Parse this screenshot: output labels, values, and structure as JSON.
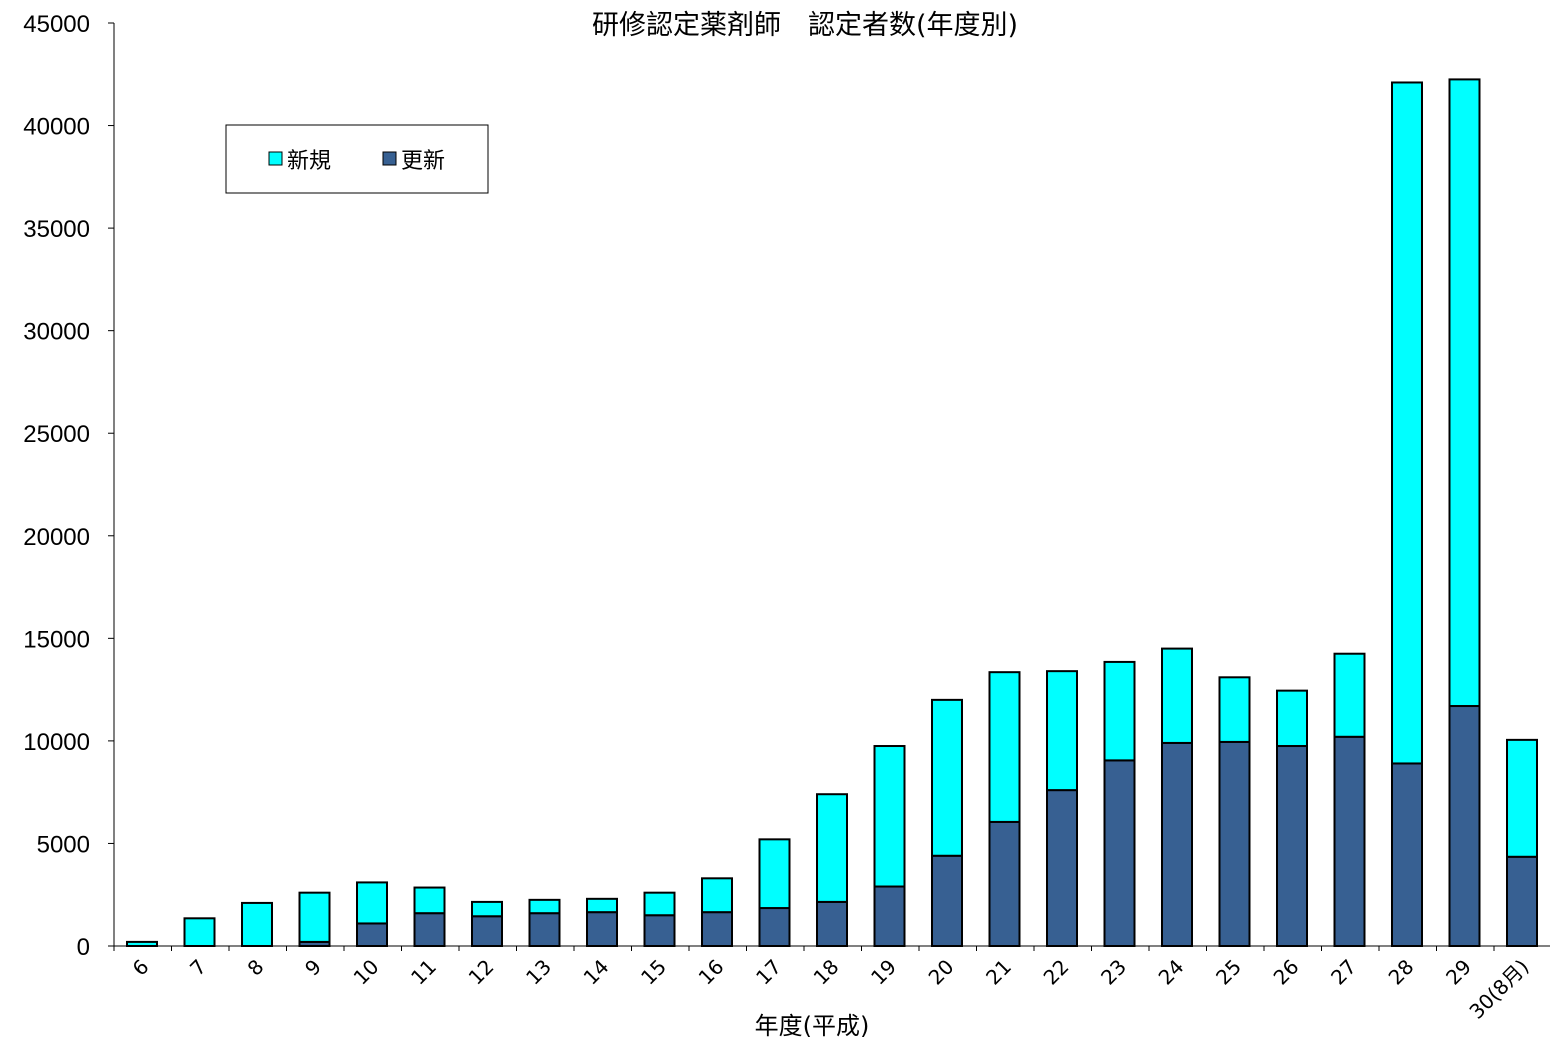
{
  "chart_data": {
    "type": "bar",
    "stacked": true,
    "title": "研修認定薬剤師　認定者数(年度別)",
    "xlabel": "年度(平成)",
    "ylabel": "",
    "ylim": [
      0,
      45000
    ],
    "yticks": [
      0,
      5000,
      10000,
      15000,
      20000,
      25000,
      30000,
      35000,
      40000,
      45000
    ],
    "grid": false,
    "legend_position": "top-left",
    "categories": [
      "6",
      "7",
      "8",
      "9",
      "10",
      "11",
      "12",
      "13",
      "14",
      "15",
      "16",
      "17",
      "18",
      "19",
      "20",
      "21",
      "22",
      "23",
      "24",
      "25",
      "26",
      "27",
      "28",
      "29",
      "30(8月)"
    ],
    "series": [
      {
        "name": "更新",
        "color": "#376092",
        "values": [
          0,
          0,
          0,
          200,
          1100,
          1600,
          1450,
          1600,
          1650,
          1500,
          1650,
          1850,
          2150,
          2900,
          4400,
          6050,
          7600,
          9050,
          9900,
          9950,
          9750,
          10200,
          8900,
          11700,
          4350
        ]
      },
      {
        "name": "新規",
        "color": "#00ffff",
        "values": [
          200,
          1350,
          2100,
          2400,
          2000,
          1250,
          700,
          650,
          650,
          1100,
          1650,
          3350,
          5250,
          6850,
          7600,
          7300,
          5800,
          4800,
          4600,
          3150,
          2700,
          4050,
          33200,
          30550,
          5700
        ]
      }
    ]
  }
}
